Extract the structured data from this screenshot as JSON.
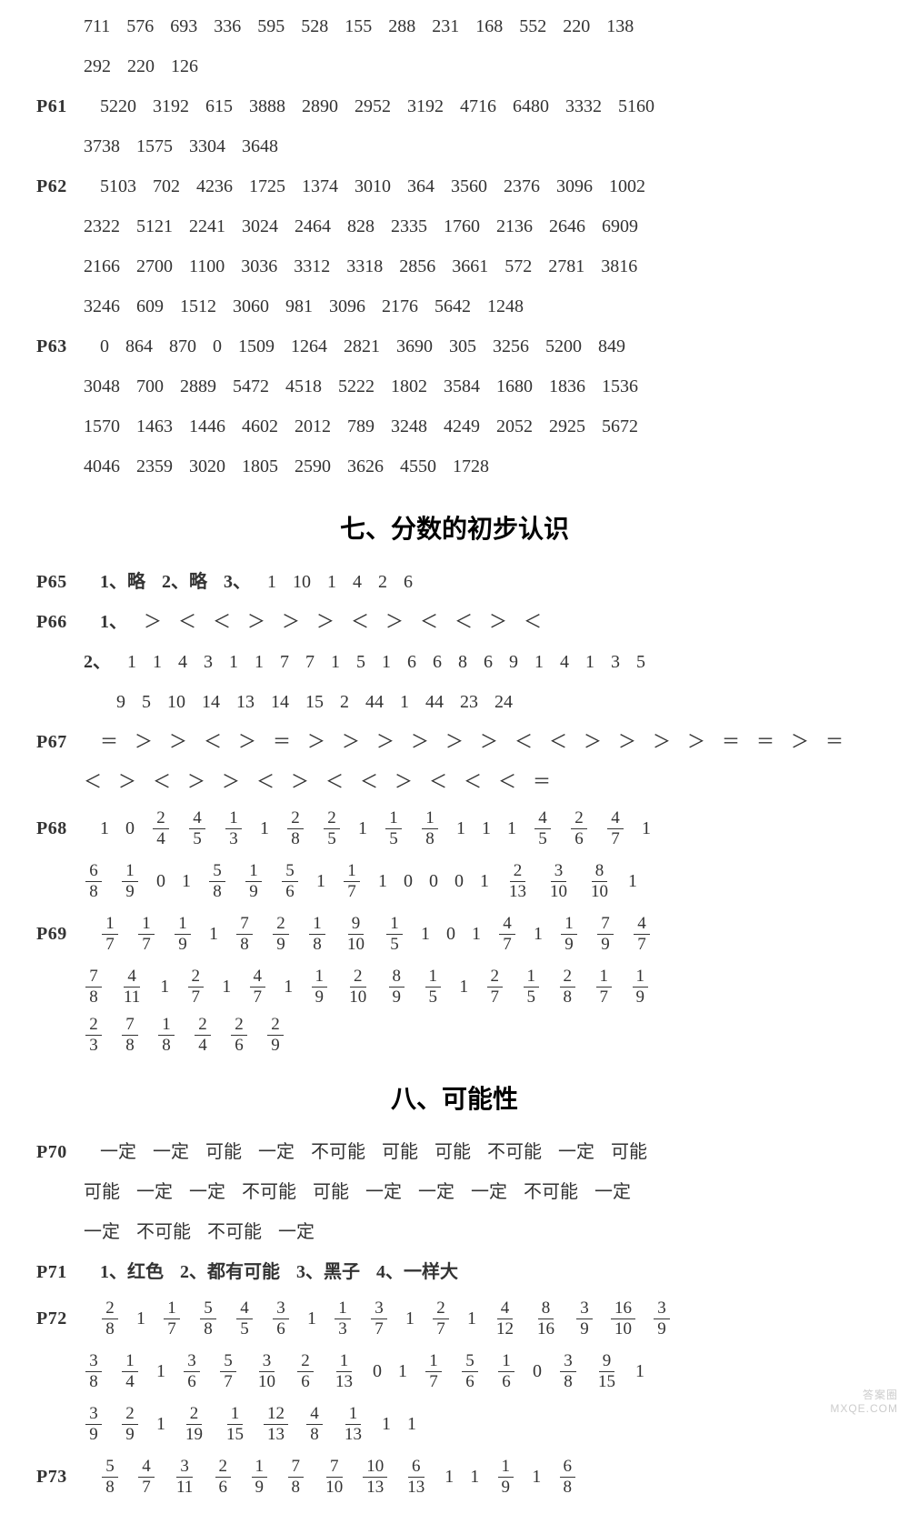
{
  "meta": {
    "background_color": "#ffffff",
    "text_color": "#333333",
    "body_font_size": 20,
    "title_font_size": 28,
    "font_family": "SimSun"
  },
  "watermark": {
    "line1": "答案圈",
    "line2": "MXQE.COM"
  },
  "preblock": {
    "cont1": [
      "711",
      "576",
      "693",
      "336",
      "595",
      "528",
      "155",
      "288",
      "231",
      "168",
      "552",
      "220",
      "138"
    ],
    "cont2": [
      "292",
      "220",
      "126"
    ],
    "p61_a": [
      "5220",
      "3192",
      "615",
      "3888",
      "2890",
      "2952",
      "3192",
      "4716",
      "6480",
      "3332",
      "5160"
    ],
    "p61_b": [
      "3738",
      "1575",
      "3304",
      "3648"
    ],
    "p62_a": [
      "5103",
      "702",
      "4236",
      "1725",
      "1374",
      "3010",
      "364",
      "3560",
      "2376",
      "3096",
      "1002"
    ],
    "p62_b": [
      "2322",
      "5121",
      "2241",
      "3024",
      "2464",
      "828",
      "2335",
      "1760",
      "2136",
      "2646",
      "6909"
    ],
    "p62_c": [
      "2166",
      "2700",
      "1100",
      "3036",
      "3312",
      "3318",
      "2856",
      "3661",
      "572",
      "2781",
      "3816"
    ],
    "p62_d": [
      "3246",
      "609",
      "1512",
      "3060",
      "981",
      "3096",
      "2176",
      "5642",
      "1248"
    ],
    "p63_a": [
      "0",
      "864",
      "870",
      "0",
      "1509",
      "1264",
      "2821",
      "3690",
      "305",
      "3256",
      "5200",
      "849"
    ],
    "p63_b": [
      "3048",
      "700",
      "2889",
      "5472",
      "4518",
      "5222",
      "1802",
      "3584",
      "1680",
      "1836",
      "1536"
    ],
    "p63_c": [
      "1570",
      "1463",
      "1446",
      "4602",
      "2012",
      "789",
      "3248",
      "4249",
      "2052",
      "2925",
      "5672"
    ],
    "p63_d": [
      "4046",
      "2359",
      "3020",
      "1805",
      "2590",
      "3626",
      "4550",
      "1728"
    ]
  },
  "section7": {
    "title": "七、分数的初步认识",
    "p65": {
      "q1": "1、略",
      "q2": "2、略",
      "q3_prefix": "3、",
      "q3_vals": [
        "1",
        "10",
        "1",
        "4",
        "2",
        "6"
      ]
    },
    "p66": {
      "q1_prefix": "1、",
      "q1_vals": [
        "＞",
        "＜",
        "＜",
        "＞",
        "＞",
        "＞",
        "＜",
        "＞",
        "＜",
        "＜",
        "＞",
        "＜"
      ],
      "q2_prefix": "2、",
      "q2_line1": [
        "1",
        "1",
        "4",
        "3",
        "1",
        "1",
        "7",
        "7",
        "1",
        "5",
        "1",
        "6",
        "6",
        "8",
        "6",
        "9",
        "1",
        "4",
        "1",
        "3",
        "5"
      ],
      "q2_line2": [
        "9",
        "5",
        "10",
        "14",
        "13",
        "14",
        "15",
        "2",
        "44",
        "1",
        "44",
        "23",
        "24"
      ]
    },
    "p67_a": [
      "＝",
      "＞",
      "＞",
      "＜",
      "＞",
      "＝",
      "＞",
      "＞",
      "＞",
      "＞",
      "＞",
      "＞",
      "＜",
      "＜",
      "＞",
      "＞",
      "＞",
      "＞",
      "＝",
      "＝",
      "＞",
      "＝"
    ],
    "p67_b": [
      "＜",
      "＞",
      "＜",
      "＞",
      "＞",
      "＜",
      "＞",
      "＜",
      "＜",
      "＞",
      "＜",
      "＜",
      "＜",
      "＝"
    ],
    "p68_a": [
      "1",
      "0",
      {
        "n": "2",
        "d": "4"
      },
      {
        "n": "4",
        "d": "5"
      },
      {
        "n": "1",
        "d": "3"
      },
      "1",
      {
        "n": "2",
        "d": "8"
      },
      {
        "n": "2",
        "d": "5"
      },
      "1",
      {
        "n": "1",
        "d": "5"
      },
      {
        "n": "1",
        "d": "8"
      },
      "1",
      "1",
      "1",
      {
        "n": "4",
        "d": "5"
      },
      {
        "n": "2",
        "d": "6"
      },
      {
        "n": "4",
        "d": "7"
      },
      "1"
    ],
    "p68_b": [
      {
        "n": "6",
        "d": "8"
      },
      {
        "n": "1",
        "d": "9"
      },
      "0",
      "1",
      {
        "n": "5",
        "d": "8"
      },
      {
        "n": "1",
        "d": "9"
      },
      {
        "n": "5",
        "d": "6"
      },
      "1",
      {
        "n": "1",
        "d": "7"
      },
      "1",
      "0",
      "0",
      "0",
      "1",
      {
        "n": "2",
        "d": "13"
      },
      {
        "n": "3",
        "d": "10"
      },
      {
        "n": "8",
        "d": "10"
      },
      "1"
    ],
    "p69_a": [
      {
        "n": "1",
        "d": "7"
      },
      {
        "n": "1",
        "d": "7"
      },
      {
        "n": "1",
        "d": "9"
      },
      "1",
      {
        "n": "7",
        "d": "8"
      },
      {
        "n": "2",
        "d": "9"
      },
      {
        "n": "1",
        "d": "8"
      },
      {
        "n": "9",
        "d": "10"
      },
      {
        "n": "1",
        "d": "5"
      },
      "1",
      "0",
      "1",
      {
        "n": "4",
        "d": "7"
      },
      "1",
      {
        "n": "1",
        "d": "9"
      },
      {
        "n": "7",
        "d": "9"
      },
      {
        "n": "4",
        "d": "7"
      }
    ],
    "p69_b": [
      {
        "n": "7",
        "d": "8"
      },
      {
        "n": "4",
        "d": "11"
      },
      "1",
      {
        "n": "2",
        "d": "7"
      },
      "1",
      {
        "n": "4",
        "d": "7"
      },
      "1",
      {
        "n": "1",
        "d": "9"
      },
      {
        "n": "2",
        "d": "10"
      },
      {
        "n": "8",
        "d": "9"
      },
      {
        "n": "1",
        "d": "5"
      },
      "1",
      {
        "n": "2",
        "d": "7"
      },
      {
        "n": "1",
        "d": "5"
      },
      {
        "n": "2",
        "d": "8"
      },
      {
        "n": "1",
        "d": "7"
      },
      {
        "n": "1",
        "d": "9"
      }
    ],
    "p69_c": [
      {
        "n": "2",
        "d": "3"
      },
      {
        "n": "7",
        "d": "8"
      },
      {
        "n": "1",
        "d": "8"
      },
      {
        "n": "2",
        "d": "4"
      },
      {
        "n": "2",
        "d": "6"
      },
      {
        "n": "2",
        "d": "9"
      }
    ]
  },
  "section8": {
    "title": "八、可能性",
    "p70_a": [
      "一定",
      "一定",
      "可能",
      "一定",
      "不可能",
      "可能",
      "可能",
      "不可能",
      "一定",
      "可能"
    ],
    "p70_b": [
      "可能",
      "一定",
      "一定",
      "不可能",
      "可能",
      "一定",
      "一定",
      "一定",
      "不可能",
      "一定"
    ],
    "p70_c": [
      "一定",
      "不可能",
      "不可能",
      "一定"
    ],
    "p71": {
      "q1": "1、红色",
      "q2": "2、都有可能",
      "q3": "3、黑子",
      "q4": "4、一样大"
    },
    "p72_a": [
      {
        "n": "2",
        "d": "8"
      },
      "1",
      {
        "n": "1",
        "d": "7"
      },
      {
        "n": "5",
        "d": "8"
      },
      {
        "n": "4",
        "d": "5"
      },
      {
        "n": "3",
        "d": "6"
      },
      "1",
      {
        "n": "1",
        "d": "3"
      },
      {
        "n": "3",
        "d": "7"
      },
      "1",
      {
        "n": "2",
        "d": "7"
      },
      "1",
      {
        "n": "4",
        "d": "12"
      },
      {
        "n": "8",
        "d": "16"
      },
      {
        "n": "3",
        "d": "9"
      },
      {
        "n": "16",
        "d": "10"
      },
      {
        "n": "3",
        "d": "9"
      }
    ],
    "p72_b": [
      {
        "n": "3",
        "d": "8"
      },
      {
        "n": "1",
        "d": "4"
      },
      "1",
      {
        "n": "3",
        "d": "6"
      },
      {
        "n": "5",
        "d": "7"
      },
      {
        "n": "3",
        "d": "10"
      },
      {
        "n": "2",
        "d": "6"
      },
      {
        "n": "1",
        "d": "13"
      },
      "0",
      "1",
      {
        "n": "1",
        "d": "7"
      },
      {
        "n": "5",
        "d": "6"
      },
      {
        "n": "1",
        "d": "6"
      },
      "0",
      {
        "n": "3",
        "d": "8"
      },
      {
        "n": "9",
        "d": "15"
      },
      "1"
    ],
    "p72_c": [
      {
        "n": "3",
        "d": "9"
      },
      {
        "n": "2",
        "d": "9"
      },
      "1",
      {
        "n": "2",
        "d": "19"
      },
      {
        "n": "1",
        "d": "15"
      },
      {
        "n": "12",
        "d": "13"
      },
      {
        "n": "4",
        "d": "8"
      },
      {
        "n": "1",
        "d": "13"
      },
      "1",
      "1"
    ],
    "p73_a": [
      {
        "n": "5",
        "d": "8"
      },
      {
        "n": "4",
        "d": "7"
      },
      {
        "n": "3",
        "d": "11"
      },
      {
        "n": "2",
        "d": "6"
      },
      {
        "n": "1",
        "d": "9"
      },
      {
        "n": "7",
        "d": "8"
      },
      {
        "n": "7",
        "d": "10"
      },
      {
        "n": "10",
        "d": "13"
      },
      {
        "n": "6",
        "d": "13"
      },
      "1",
      "1",
      {
        "n": "1",
        "d": "9"
      },
      "1",
      {
        "n": "6",
        "d": "8"
      }
    ]
  },
  "labels": {
    "P61": "P61",
    "P62": "P62",
    "P63": "P63",
    "P65": "P65",
    "P66": "P66",
    "P67": "P67",
    "P68": "P68",
    "P69": "P69",
    "P70": "P70",
    "P71": "P71",
    "P72": "P72",
    "P73": "P73"
  }
}
